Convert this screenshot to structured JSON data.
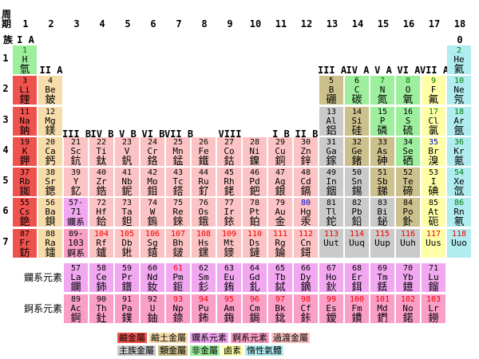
{
  "labels": {
    "period": "周期",
    "group": "族",
    "ln_row": "鑭系元素",
    "an_row": "錒系元素"
  },
  "column_numbers": [
    1,
    2,
    3,
    4,
    5,
    6,
    7,
    8,
    9,
    10,
    11,
    12,
    13,
    14,
    15,
    16,
    17,
    18
  ],
  "period_numbers": [
    1,
    2,
    3,
    4,
    5,
    6,
    7
  ],
  "group_labels": [
    {
      "text": "I A",
      "col": 1,
      "line": 0
    },
    {
      "text": "0",
      "col": 18,
      "line": 0
    },
    {
      "text": "II A",
      "col": 2,
      "line": 1
    },
    {
      "text": "III A",
      "col": 13,
      "line": 1
    },
    {
      "text": "IV A",
      "col": 14,
      "line": 1
    },
    {
      "text": "V A",
      "col": 15,
      "line": 1
    },
    {
      "text": "VI A",
      "col": 16,
      "line": 1
    },
    {
      "text": "VII A",
      "col": 17,
      "line": 1
    },
    {
      "text": "III B",
      "col": 3,
      "line": 2
    },
    {
      "text": "IV B",
      "col": 4,
      "line": 2
    },
    {
      "text": "V B",
      "col": 5,
      "line": 2
    },
    {
      "text": "VI B",
      "col": 6,
      "line": 2
    },
    {
      "text": "VII B",
      "col": 7,
      "line": 2
    },
    {
      "text": "VIII",
      "col": 9,
      "line": 2
    },
    {
      "text": "I B",
      "col": 11,
      "line": 2
    },
    {
      "text": "II B",
      "col": 12,
      "line": 2
    }
  ],
  "colors": {
    "alkali": "#f0534e",
    "alkaline": "#f6dcaa",
    "transition": "#fbc3c3",
    "lanthanide": "#f1a8f1",
    "actinide": "#fa9fc6",
    "metal": "#cacaca",
    "metalloid": "#ccc08c",
    "nonmetal": "#9dee9d",
    "halogen": "#ffffa8",
    "noble": "#b0ecf0"
  },
  "number_colors": {
    "gas": "#007c00",
    "liquid": "#0000dd",
    "synthetic": "#ee0000"
  },
  "elements": [
    {
      "n": "1",
      "s": "H",
      "z": "氫",
      "g": 1,
      "p": "1",
      "c": "nonmetal",
      "k": "gas"
    },
    {
      "n": "2",
      "s": "He",
      "z": "氦",
      "g": 18,
      "p": "1",
      "c": "noble",
      "k": "gas"
    },
    {
      "n": "3",
      "s": "Li",
      "z": "鋰",
      "g": 1,
      "p": "2",
      "c": "alkali"
    },
    {
      "n": "4",
      "s": "Be",
      "z": "鈹",
      "g": 2,
      "p": "2",
      "c": "alkaline"
    },
    {
      "n": "5",
      "s": "B",
      "z": "硼",
      "g": 13,
      "p": "2",
      "c": "metalloid"
    },
    {
      "n": "6",
      "s": "C",
      "z": "碳",
      "g": 14,
      "p": "2",
      "c": "nonmetal"
    },
    {
      "n": "7",
      "s": "N",
      "z": "氮",
      "g": 15,
      "p": "2",
      "c": "nonmetal",
      "k": "gas"
    },
    {
      "n": "8",
      "s": "O",
      "z": "氧",
      "g": 16,
      "p": "2",
      "c": "nonmetal",
      "k": "gas"
    },
    {
      "n": "9",
      "s": "F",
      "z": "氟",
      "g": 17,
      "p": "2",
      "c": "halogen",
      "k": "gas"
    },
    {
      "n": "10",
      "s": "Ne",
      "z": "氖",
      "g": 18,
      "p": "2",
      "c": "noble",
      "k": "gas"
    },
    {
      "n": "11",
      "s": "Na",
      "z": "鈉",
      "g": 1,
      "p": "3",
      "c": "alkali"
    },
    {
      "n": "12",
      "s": "Mg",
      "z": "鎂",
      "g": 2,
      "p": "3",
      "c": "alkaline"
    },
    {
      "n": "13",
      "s": "Al",
      "z": "鋁",
      "g": 13,
      "p": "3",
      "c": "metal"
    },
    {
      "n": "14",
      "s": "Si",
      "z": "硅",
      "g": 14,
      "p": "3",
      "c": "metalloid"
    },
    {
      "n": "15",
      "s": "P",
      "z": "磷",
      "g": 15,
      "p": "3",
      "c": "nonmetal"
    },
    {
      "n": "16",
      "s": "S",
      "z": "硫",
      "g": 16,
      "p": "3",
      "c": "nonmetal"
    },
    {
      "n": "17",
      "s": "Cl",
      "z": "氯",
      "g": 17,
      "p": "3",
      "c": "halogen",
      "k": "gas"
    },
    {
      "n": "18",
      "s": "Ar",
      "z": "氬",
      "g": 18,
      "p": "3",
      "c": "noble",
      "k": "gas"
    },
    {
      "n": "19",
      "s": "K",
      "z": "鉀",
      "g": 1,
      "p": "4",
      "c": "alkali"
    },
    {
      "n": "20",
      "s": "Ca",
      "z": "鈣",
      "g": 2,
      "p": "4",
      "c": "alkaline"
    },
    {
      "n": "21",
      "s": "Sc",
      "z": "鈧",
      "g": 3,
      "p": "4",
      "c": "transition"
    },
    {
      "n": "22",
      "s": "Ti",
      "z": "鈦",
      "g": 4,
      "p": "4",
      "c": "transition"
    },
    {
      "n": "23",
      "s": "V",
      "z": "釩",
      "g": 5,
      "p": "4",
      "c": "transition"
    },
    {
      "n": "24",
      "s": "Cr",
      "z": "鉻",
      "g": 6,
      "p": "4",
      "c": "transition"
    },
    {
      "n": "25",
      "s": "Mn",
      "z": "錳",
      "g": 7,
      "p": "4",
      "c": "transition"
    },
    {
      "n": "26",
      "s": "Fe",
      "z": "鐵",
      "g": 8,
      "p": "4",
      "c": "transition"
    },
    {
      "n": "27",
      "s": "Co",
      "z": "鈷",
      "g": 9,
      "p": "4",
      "c": "transition"
    },
    {
      "n": "28",
      "s": "Ni",
      "z": "鎳",
      "g": 10,
      "p": "4",
      "c": "transition"
    },
    {
      "n": "29",
      "s": "Cu",
      "z": "銅",
      "g": 11,
      "p": "4",
      "c": "transition"
    },
    {
      "n": "30",
      "s": "Zn",
      "z": "鋅",
      "g": 12,
      "p": "4",
      "c": "transition"
    },
    {
      "n": "31",
      "s": "Ga",
      "z": "鎵",
      "g": 13,
      "p": "4",
      "c": "metal"
    },
    {
      "n": "32",
      "s": "Ge",
      "z": "鍺",
      "g": 14,
      "p": "4",
      "c": "metalloid"
    },
    {
      "n": "33",
      "s": "As",
      "z": "砷",
      "g": 15,
      "p": "4",
      "c": "metalloid"
    },
    {
      "n": "34",
      "s": "Se",
      "z": "硒",
      "g": 16,
      "p": "4",
      "c": "nonmetal"
    },
    {
      "n": "35",
      "s": "Br",
      "z": "溴",
      "g": 17,
      "p": "4",
      "c": "halogen",
      "k": "liquid"
    },
    {
      "n": "36",
      "s": "Kr",
      "z": "氪",
      "g": 18,
      "p": "4",
      "c": "noble",
      "k": "gas"
    },
    {
      "n": "37",
      "s": "Rb",
      "z": "銣",
      "g": 1,
      "p": "5",
      "c": "alkali"
    },
    {
      "n": "38",
      "s": "Sr",
      "z": "鍶",
      "g": 2,
      "p": "5",
      "c": "alkaline"
    },
    {
      "n": "39",
      "s": "Y",
      "z": "釔",
      "g": 3,
      "p": "5",
      "c": "transition"
    },
    {
      "n": "40",
      "s": "Zr",
      "z": "鋯",
      "g": 4,
      "p": "5",
      "c": "transition"
    },
    {
      "n": "41",
      "s": "Nb",
      "z": "鈮",
      "g": 5,
      "p": "5",
      "c": "transition"
    },
    {
      "n": "42",
      "s": "Mo",
      "z": "鉬",
      "g": 6,
      "p": "5",
      "c": "transition"
    },
    {
      "n": "43",
      "s": "Tc",
      "z": "鎝",
      "g": 7,
      "p": "5",
      "c": "transition"
    },
    {
      "n": "44",
      "s": "Ru",
      "z": "釕",
      "g": 8,
      "p": "5",
      "c": "transition"
    },
    {
      "n": "45",
      "s": "Rh",
      "z": "銠",
      "g": 9,
      "p": "5",
      "c": "transition"
    },
    {
      "n": "46",
      "s": "Pd",
      "z": "鈀",
      "g": 10,
      "p": "5",
      "c": "transition"
    },
    {
      "n": "47",
      "s": "Ag",
      "z": "銀",
      "g": 11,
      "p": "5",
      "c": "transition"
    },
    {
      "n": "48",
      "s": "Cd",
      "z": "鎘",
      "g": 12,
      "p": "5",
      "c": "transition"
    },
    {
      "n": "49",
      "s": "In",
      "z": "銦",
      "g": 13,
      "p": "5",
      "c": "metal"
    },
    {
      "n": "50",
      "s": "Sn",
      "z": "錫",
      "g": 14,
      "p": "5",
      "c": "metal"
    },
    {
      "n": "51",
      "s": "Sb",
      "z": "銻",
      "g": 15,
      "p": "5",
      "c": "metalloid"
    },
    {
      "n": "52",
      "s": "Te",
      "z": "碲",
      "g": 16,
      "p": "5",
      "c": "metalloid"
    },
    {
      "n": "53",
      "s": "I",
      "z": "碘",
      "g": 17,
      "p": "5",
      "c": "halogen"
    },
    {
      "n": "54",
      "s": "Xe",
      "z": "氙",
      "g": 18,
      "p": "5",
      "c": "noble",
      "k": "gas"
    },
    {
      "n": "55",
      "s": "Cs",
      "z": "銫",
      "g": 1,
      "p": "6",
      "c": "alkali"
    },
    {
      "n": "56",
      "s": "Ba",
      "z": "鋇",
      "g": 2,
      "p": "6",
      "c": "alkaline"
    },
    {
      "n": "57-",
      "s": "71",
      "z": "鑭系",
      "g": 3,
      "p": "6",
      "c": "lanthanide",
      "m": true
    },
    {
      "n": "72",
      "s": "Hf",
      "z": "鉿",
      "g": 4,
      "p": "6",
      "c": "transition"
    },
    {
      "n": "73",
      "s": "Ta",
      "z": "鉭",
      "g": 5,
      "p": "6",
      "c": "transition"
    },
    {
      "n": "74",
      "s": "W",
      "z": "鎢",
      "g": 6,
      "p": "6",
      "c": "transition"
    },
    {
      "n": "75",
      "s": "Re",
      "z": "錸",
      "g": 7,
      "p": "6",
      "c": "transition"
    },
    {
      "n": "76",
      "s": "Os",
      "z": "鋨",
      "g": 8,
      "p": "6",
      "c": "transition"
    },
    {
      "n": "77",
      "s": "Ir",
      "z": "銥",
      "g": 9,
      "p": "6",
      "c": "transition"
    },
    {
      "n": "78",
      "s": "Pt",
      "z": "鉑",
      "g": 10,
      "p": "6",
      "c": "transition"
    },
    {
      "n": "79",
      "s": "Au",
      "z": "金",
      "g": 11,
      "p": "6",
      "c": "transition"
    },
    {
      "n": "80",
      "s": "Hg",
      "z": "汞",
      "g": 12,
      "p": "6",
      "c": "transition",
      "k": "liquid"
    },
    {
      "n": "81",
      "s": "Tl",
      "z": "鉈",
      "g": 13,
      "p": "6",
      "c": "metal"
    },
    {
      "n": "82",
      "s": "Pb",
      "z": "鉛",
      "g": 14,
      "p": "6",
      "c": "metal"
    },
    {
      "n": "83",
      "s": "Bi",
      "z": "鉍",
      "g": 15,
      "p": "6",
      "c": "metal"
    },
    {
      "n": "84",
      "s": "Po",
      "z": "釙",
      "g": 16,
      "p": "6",
      "c": "metalloid"
    },
    {
      "n": "85",
      "s": "At",
      "z": "砈",
      "g": 17,
      "p": "6",
      "c": "halogen"
    },
    {
      "n": "86",
      "s": "Rn",
      "z": "氡",
      "g": 18,
      "p": "6",
      "c": "noble",
      "k": "gas"
    },
    {
      "n": "87",
      "s": "Fr",
      "z": "鈁",
      "g": 1,
      "p": "7",
      "c": "alkali"
    },
    {
      "n": "88",
      "s": "Ra",
      "z": "鐳",
      "g": 2,
      "p": "7",
      "c": "alkaline"
    },
    {
      "n": "89-",
      "s": "103",
      "z": "錒系",
      "g": 3,
      "p": "7",
      "c": "actinide",
      "m": true
    },
    {
      "n": "104",
      "s": "Rf",
      "z": "鑪",
      "g": 4,
      "p": "7",
      "c": "transition",
      "k": "synthetic"
    },
    {
      "n": "105",
      "s": "Db",
      "z": "𨧀",
      "g": 5,
      "p": "7",
      "c": "transition",
      "k": "synthetic"
    },
    {
      "n": "106",
      "s": "Sg",
      "z": "𨭎",
      "g": 6,
      "p": "7",
      "c": "transition",
      "k": "synthetic"
    },
    {
      "n": "107",
      "s": "Bh",
      "z": "𨨏",
      "g": 7,
      "p": "7",
      "c": "transition",
      "k": "synthetic"
    },
    {
      "n": "108",
      "s": "Hs",
      "z": "𨭆",
      "g": 8,
      "p": "7",
      "c": "transition",
      "k": "synthetic"
    },
    {
      "n": "109",
      "s": "Mt",
      "z": "䥑",
      "g": 9,
      "p": "7",
      "c": "transition",
      "k": "synthetic"
    },
    {
      "n": "110",
      "s": "Ds",
      "z": "鐽",
      "g": 10,
      "p": "7",
      "c": "transition",
      "k": "synthetic"
    },
    {
      "n": "111",
      "s": "Rg",
      "z": "錀",
      "g": 11,
      "p": "7",
      "c": "transition",
      "k": "synthetic"
    },
    {
      "n": "112",
      "s": "Cn",
      "z": "鎶",
      "g": 12,
      "p": "7",
      "c": "transition",
      "k": "synthetic"
    },
    {
      "n": "113",
      "s": "Uut",
      "z": "",
      "g": 13,
      "p": "7",
      "c": "metal",
      "k": "synthetic"
    },
    {
      "n": "114",
      "s": "Uuq",
      "z": "",
      "g": 14,
      "p": "7",
      "c": "metal",
      "k": "synthetic"
    },
    {
      "n": "115",
      "s": "Uup",
      "z": "",
      "g": 15,
      "p": "7",
      "c": "metal",
      "k": "synthetic"
    },
    {
      "n": "116",
      "s": "Uuh",
      "z": "",
      "g": 16,
      "p": "7",
      "c": "metal",
      "k": "synthetic"
    },
    {
      "n": "117",
      "s": "Uus",
      "z": "",
      "g": 17,
      "p": "7",
      "c": "halogen",
      "k": "synthetic"
    },
    {
      "n": "118",
      "s": "Uuo",
      "z": "",
      "g": 18,
      "p": "7",
      "c": "noble",
      "k": "synthetic"
    },
    {
      "n": "57",
      "s": "La",
      "z": "鑭",
      "g": 3,
      "p": "L",
      "c": "lanthanide"
    },
    {
      "n": "58",
      "s": "Ce",
      "z": "鈰",
      "g": 4,
      "p": "L",
      "c": "lanthanide"
    },
    {
      "n": "59",
      "s": "Pr",
      "z": "鐠",
      "g": 5,
      "p": "L",
      "c": "lanthanide"
    },
    {
      "n": "60",
      "s": "Nd",
      "z": "釹",
      "g": 6,
      "p": "L",
      "c": "lanthanide"
    },
    {
      "n": "61",
      "s": "Pm",
      "z": "鉕",
      "g": 7,
      "p": "L",
      "c": "lanthanide",
      "k": "synthetic"
    },
    {
      "n": "62",
      "s": "Sm",
      "z": "釤",
      "g": 8,
      "p": "L",
      "c": "lanthanide"
    },
    {
      "n": "63",
      "s": "Eu",
      "z": "銪",
      "g": 9,
      "p": "L",
      "c": "lanthanide"
    },
    {
      "n": "64",
      "s": "Gd",
      "z": "釓",
      "g": 10,
      "p": "L",
      "c": "lanthanide"
    },
    {
      "n": "65",
      "s": "Tb",
      "z": "鋱",
      "g": 11,
      "p": "L",
      "c": "lanthanide"
    },
    {
      "n": "66",
      "s": "Dy",
      "z": "鏑",
      "g": 12,
      "p": "L",
      "c": "lanthanide"
    },
    {
      "n": "67",
      "s": "Ho",
      "z": "鈥",
      "g": 13,
      "p": "L",
      "c": "lanthanide"
    },
    {
      "n": "68",
      "s": "Er",
      "z": "鉺",
      "g": 14,
      "p": "L",
      "c": "lanthanide"
    },
    {
      "n": "69",
      "s": "Tm",
      "z": "銩",
      "g": 15,
      "p": "L",
      "c": "lanthanide"
    },
    {
      "n": "70",
      "s": "Yb",
      "z": "鐿",
      "g": 16,
      "p": "L",
      "c": "lanthanide"
    },
    {
      "n": "71",
      "s": "Lu",
      "z": "鎦",
      "g": 17,
      "p": "L",
      "c": "lanthanide"
    },
    {
      "n": "89",
      "s": "Ac",
      "z": "錒",
      "g": 3,
      "p": "A",
      "c": "actinide"
    },
    {
      "n": "90",
      "s": "Th",
      "z": "釷",
      "g": 4,
      "p": "A",
      "c": "actinide"
    },
    {
      "n": "91",
      "s": "Pa",
      "z": "鏷",
      "g": 5,
      "p": "A",
      "c": "actinide"
    },
    {
      "n": "92",
      "s": "U",
      "z": "鈾",
      "g": 6,
      "p": "A",
      "c": "actinide"
    },
    {
      "n": "93",
      "s": "Np",
      "z": "錼",
      "g": 7,
      "p": "A",
      "c": "actinide",
      "k": "synthetic"
    },
    {
      "n": "94",
      "s": "Pu",
      "z": "鈽",
      "g": 8,
      "p": "A",
      "c": "actinide",
      "k": "synthetic"
    },
    {
      "n": "95",
      "s": "Am",
      "z": "鋂",
      "g": 9,
      "p": "A",
      "c": "actinide",
      "k": "synthetic"
    },
    {
      "n": "96",
      "s": "Cm",
      "z": "鋦",
      "g": 10,
      "p": "A",
      "c": "actinide",
      "k": "synthetic"
    },
    {
      "n": "97",
      "s": "Bk",
      "z": "鉳",
      "g": 11,
      "p": "A",
      "c": "actinide",
      "k": "synthetic"
    },
    {
      "n": "98",
      "s": "Cf",
      "z": "鉲",
      "g": 12,
      "p": "A",
      "c": "actinide",
      "k": "synthetic"
    },
    {
      "n": "99",
      "s": "Es",
      "z": "鑀",
      "g": 13,
      "p": "A",
      "c": "actinide",
      "k": "synthetic"
    },
    {
      "n": "100",
      "s": "Fm",
      "z": "鐨",
      "g": 14,
      "p": "A",
      "c": "actinide",
      "k": "synthetic"
    },
    {
      "n": "101",
      "s": "Md",
      "z": "鍆",
      "g": 15,
      "p": "A",
      "c": "actinide",
      "k": "synthetic"
    },
    {
      "n": "102",
      "s": "No",
      "z": "鍩",
      "g": 16,
      "p": "A",
      "c": "actinide",
      "k": "synthetic"
    },
    {
      "n": "103",
      "s": "Lr",
      "z": "鐒",
      "g": 17,
      "p": "A",
      "c": "actinide",
      "k": "synthetic"
    }
  ],
  "legend": [
    [
      {
        "label": "鹼金屬",
        "c": "alkali"
      },
      {
        "label": "鹼土金屬",
        "c": "alkaline"
      },
      {
        "label": "鑭系元素",
        "c": "lanthanide"
      },
      {
        "label": "錒系元素",
        "c": "actinide"
      },
      {
        "label": "過渡金屬",
        "c": "transition"
      }
    ],
    [
      {
        "label": "主族金屬",
        "c": "metal"
      },
      {
        "label": "類金屬",
        "c": "metalloid"
      },
      {
        "label": "非金屬",
        "c": "nonmetal"
      },
      {
        "label": "鹵素",
        "c": "halogen"
      },
      {
        "label": "惰性氣體",
        "c": "noble"
      }
    ]
  ]
}
